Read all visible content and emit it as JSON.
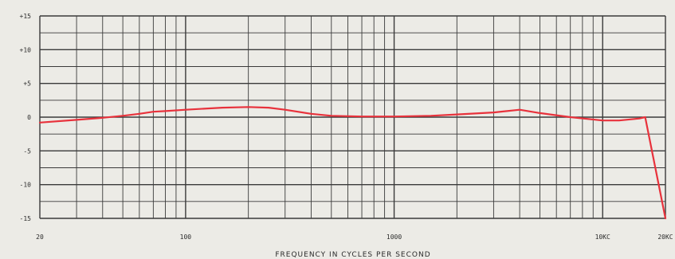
{
  "chart_data": {
    "type": "line",
    "title": "",
    "xlabel": "FREQUENCY IN CYCLES PER SECOND",
    "ylabel": "",
    "x_scale": "log",
    "xlim": [
      20,
      20000
    ],
    "ylim": [
      -15,
      15
    ],
    "grid": true,
    "x_ticks": [
      {
        "value": 20,
        "label": "20"
      },
      {
        "value": 100,
        "label": "100"
      },
      {
        "value": 1000,
        "label": "1000"
      },
      {
        "value": 10000,
        "label": "10KC"
      },
      {
        "value": 20000,
        "label": "20KC"
      }
    ],
    "y_ticks": [
      {
        "value": 15,
        "label": "+15"
      },
      {
        "value": 10,
        "label": "+10"
      },
      {
        "value": 5,
        "label": "+5"
      },
      {
        "value": 0,
        "label": "0"
      },
      {
        "value": -5,
        "label": "-5"
      },
      {
        "value": -10,
        "label": "-10"
      },
      {
        "value": -15,
        "label": "-15"
      }
    ],
    "series": [
      {
        "color": "#e8323c",
        "x": [
          20,
          30,
          40,
          50,
          60,
          70,
          80,
          100,
          150,
          200,
          250,
          300,
          400,
          500,
          700,
          1000,
          1500,
          2000,
          3000,
          4000,
          5000,
          7000,
          10000,
          12000,
          15000,
          16000,
          20000
        ],
        "y": [
          -0.8,
          -0.4,
          -0.1,
          0.2,
          0.5,
          0.8,
          0.9,
          1.1,
          1.4,
          1.5,
          1.4,
          1.1,
          0.5,
          0.2,
          0.1,
          0.1,
          0.2,
          0.4,
          0.7,
          1.1,
          0.6,
          0.0,
          -0.5,
          -0.5,
          -0.2,
          0.0,
          -15
        ]
      }
    ]
  }
}
